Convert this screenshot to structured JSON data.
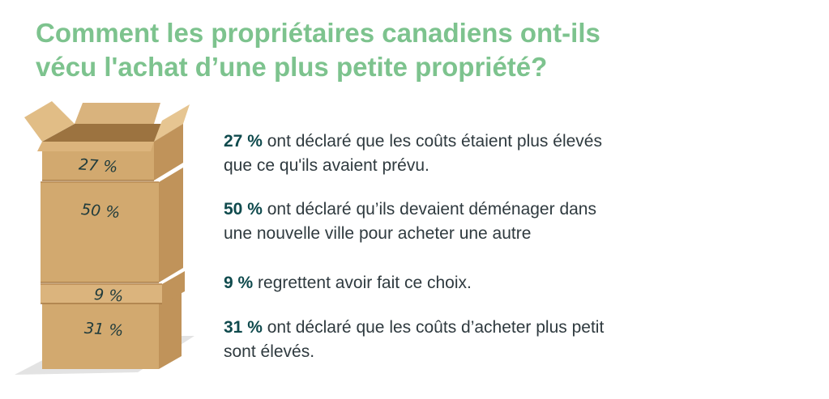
{
  "title_line1": "Comment les propriétaires canadiens ont-ils",
  "title_line2": "vécu l'achat d’une plus petite propriété?",
  "boxes": [
    {
      "label": "27 %"
    },
    {
      "label": "50 %"
    },
    {
      "label": "9 %"
    },
    {
      "label": "31 %"
    }
  ],
  "stats": [
    {
      "pct": "27 %",
      "line1": " ont déclaré que les coûts étaient plus élevés",
      "line2": "que ce qu'ils avaient prévu."
    },
    {
      "pct": "50 %",
      "line1": " ont déclaré qu’ils devaient déménager dans",
      "line2": "une nouvelle ville pour acheter une autre"
    },
    {
      "pct": "9 %",
      "line1": " regrettent avoir fait ce choix.",
      "line2": ""
    },
    {
      "pct": "31 %",
      "line1": " ont déclaré que les coûts d’acheter plus petit",
      "line2": "sont élevés."
    }
  ],
  "colors": {
    "title": "#7dc38e",
    "box_front": "#d2a96f",
    "box_side": "#c0935a",
    "box_top": "#e1bd86",
    "pct_text": "#0f4a4d"
  }
}
